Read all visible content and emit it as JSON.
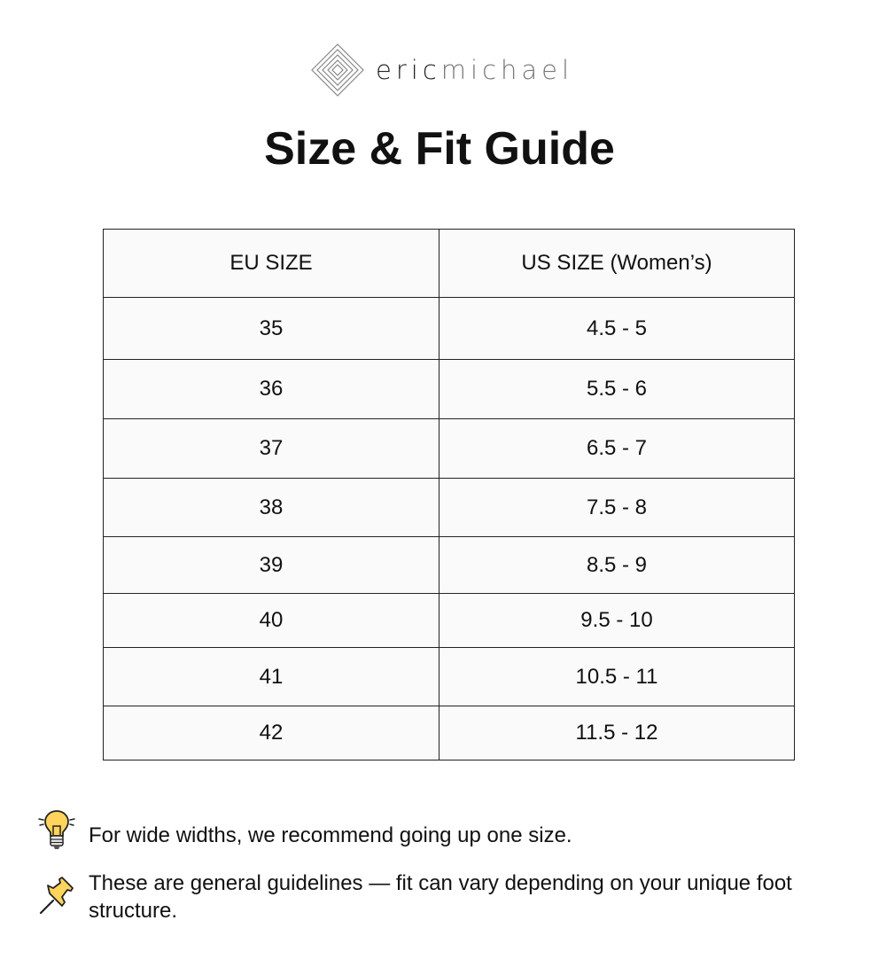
{
  "brand": {
    "name_part1": "eric",
    "name_part2": "michael"
  },
  "title": "Size & Fit Guide",
  "table": {
    "headers": [
      "EU SIZE",
      "US SIZE (Women’s)"
    ],
    "rows": [
      [
        "35",
        "4.5 - 5"
      ],
      [
        "36",
        "5.5 - 6"
      ],
      [
        "37",
        "6.5 - 7"
      ],
      [
        "38",
        "7.5 - 8"
      ],
      [
        "39",
        "8.5 - 9"
      ],
      [
        "40",
        "9.5 - 10"
      ],
      [
        "41",
        "10.5 - 11"
      ],
      [
        "42",
        "11.5 - 12"
      ]
    ]
  },
  "notes": [
    {
      "icon": "lightbulb-icon",
      "text": "For wide widths, we recommend going up one size."
    },
    {
      "icon": "pushpin-icon",
      "text": "These are general guidelines — fit can vary depending on your unique foot structure."
    }
  ]
}
